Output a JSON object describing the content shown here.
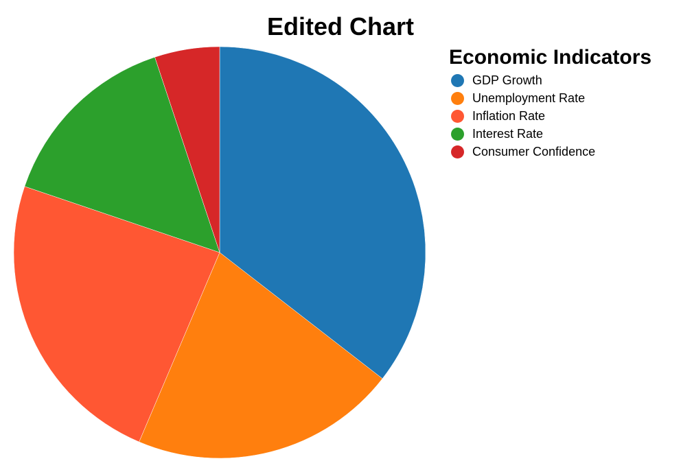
{
  "chart_data": {
    "type": "pie",
    "title": "Edited Chart",
    "legend_title": "Economic Indicators",
    "legend_position": "top-right",
    "categories": [
      "GDP Growth",
      "Unemployment Rate",
      "Inflation Rate",
      "Interest Rate",
      "Consumer Confidence"
    ],
    "values": [
      35.5,
      20.9,
      23.8,
      14.7,
      5.1
    ],
    "colors": [
      "#1f77b4",
      "#ff7f0e",
      "#ff5733",
      "#2ca02c",
      "#d62728"
    ]
  }
}
